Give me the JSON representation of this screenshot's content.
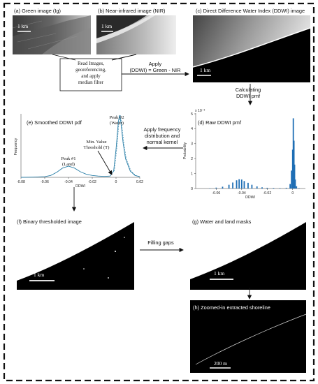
{
  "panels": {
    "a": "(a)  Green image (Ig)",
    "b": "(b)  Near-infrared image (NIR)",
    "c": "(c)  Direct Difference Water Index (DDWI) image",
    "d": "(d)  Raw DDWI pmf",
    "e": "(e)  Smoothed DDWI pdf",
    "f": "(f)  Binary thresholded image",
    "g": "(g)  Water and land masks",
    "h": "(h)  Zoomed-in extracted shoreline"
  },
  "scale_bars": {
    "a": "1 km",
    "b": "1 km",
    "c": "1 km",
    "f": "1 km",
    "g": "1 km",
    "h": "200 m"
  },
  "process": {
    "read_box": [
      "Read Images,",
      "georeferencing,",
      "and apply",
      "median filter"
    ],
    "apply_line1": "Apply",
    "apply_line2": "(DDWI) = Green - NIR",
    "calc_line1": "Calculating",
    "calc_line2": "DDWI pmf",
    "freq_line1": "Apply frequency",
    "freq_line2": "distribution and",
    "freq_line3": "normal kernel",
    "fill_gaps": "Filling gaps"
  },
  "annotations": {
    "peak1": [
      "Peak #1",
      "(Land)"
    ],
    "peak2": [
      "Peak #2",
      "(Water)"
    ],
    "threshold": [
      "Min. Value",
      "Threshold (T)"
    ]
  },
  "chart_data": [
    {
      "type": "line",
      "panel": "e",
      "title": "(e)  Smoothed DDWI pdf",
      "xlabel": "DDWI",
      "ylabel": "Frequency",
      "xlim": [
        -0.08,
        0.02
      ],
      "xticks": [
        "-0.08",
        "-0.06",
        "-0.04",
        "-0.02",
        "0",
        "0.02"
      ],
      "series": [
        {
          "x": [
            -0.08,
            -0.07,
            -0.06,
            -0.055,
            -0.05,
            -0.045,
            -0.04,
            -0.035,
            -0.03,
            -0.025,
            -0.02,
            -0.015,
            -0.01,
            -0.005,
            -0.002,
            0.0,
            0.002,
            0.003,
            0.004,
            0.006,
            0.008,
            0.012,
            0.016,
            0.02
          ],
          "y": [
            0.0,
            0.003,
            0.01,
            0.03,
            0.08,
            0.15,
            0.18,
            0.15,
            0.09,
            0.05,
            0.03,
            0.02,
            0.015,
            0.02,
            0.1,
            0.45,
            0.9,
            1.0,
            0.9,
            0.55,
            0.3,
            0.1,
            0.03,
            0.01
          ]
        }
      ]
    },
    {
      "type": "bar",
      "panel": "d",
      "title": "(d)  Raw DDWI pmf",
      "xlabel": "DDWI",
      "ylabel": "Probability",
      "y_exponent": "x 10⁻³",
      "xticks": [
        "-0.06",
        "-0.04",
        "-0.02",
        "0"
      ],
      "yticks": [
        "0",
        "1",
        "2",
        "3",
        "4",
        "5"
      ],
      "ylim": [
        0,
        5
      ],
      "xlim": [
        -0.075,
        0.01
      ],
      "series": [
        {
          "x": [
            -0.065,
            -0.06,
            -0.055,
            -0.05,
            -0.047,
            -0.044,
            -0.042,
            -0.04,
            -0.038,
            -0.035,
            -0.032,
            -0.028,
            -0.024,
            -0.02,
            -0.015,
            -0.01,
            -0.005,
            -0.002,
            -0.001,
            0.0,
            0.0005,
            0.001,
            0.0015,
            0.002,
            0.003,
            0.005
          ],
          "y": [
            0.02,
            0.06,
            0.12,
            0.25,
            0.4,
            0.55,
            0.62,
            0.6,
            0.5,
            0.38,
            0.25,
            0.14,
            0.08,
            0.05,
            0.04,
            0.03,
            0.05,
            0.3,
            1.2,
            2.6,
            4.7,
            3.2,
            1.6,
            0.6,
            0.15,
            0.03
          ]
        }
      ]
    }
  ],
  "colors": {
    "curve": "#2a7fa8",
    "bar": "#1f6fb5",
    "dashed_border": "#111111"
  }
}
